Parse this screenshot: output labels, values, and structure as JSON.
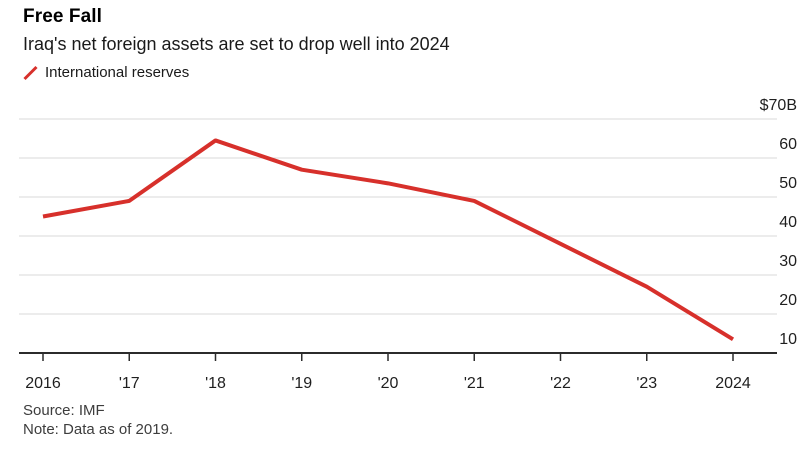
{
  "header": {
    "title": "Free Fall",
    "subtitle": "Iraq's net foreign assets are set to drop well into 2024"
  },
  "legend": {
    "marker": "red-slash-icon",
    "label": "International reserves"
  },
  "footer": {
    "source": "Source: IMF",
    "note": "Note: Data as of 2019."
  },
  "colors": {
    "accent_red": "#d7302b",
    "gridline": "#d9d9d9",
    "axis": "#2b2b2b",
    "axis_label": "#1f1f1f",
    "text_primary": "#000000",
    "text_secondary": "#3d3d3d"
  },
  "chart_data": {
    "type": "line",
    "title": "Free Fall",
    "subtitle": "Iraq's net foreign assets are set to drop well into 2024",
    "x": [
      2016,
      2017,
      2018,
      2019,
      2020,
      2021,
      2022,
      2023,
      2024
    ],
    "x_tick_labels": [
      "2016",
      "'17",
      "'18",
      "'19",
      "'20",
      "'21",
      "'22",
      "'23",
      "2024"
    ],
    "series": [
      {
        "name": "International reserves",
        "color": "#d7302b",
        "values": [
          45,
          49,
          64.5,
          57,
          53.5,
          49,
          38,
          27,
          13.5
        ]
      }
    ],
    "unit": "$B",
    "y_ticks": [
      {
        "value": 70,
        "label": "$70B"
      },
      {
        "value": 60,
        "label": "60"
      },
      {
        "value": 50,
        "label": "50"
      },
      {
        "value": 40,
        "label": "40"
      },
      {
        "value": 30,
        "label": "30"
      },
      {
        "value": 20,
        "label": "20"
      },
      {
        "value": 10,
        "label": "10"
      }
    ],
    "ylim": [
      10,
      70
    ],
    "grid": "horizontal",
    "legend_position": "top-left",
    "source": "IMF",
    "note": "Data as of 2019."
  }
}
